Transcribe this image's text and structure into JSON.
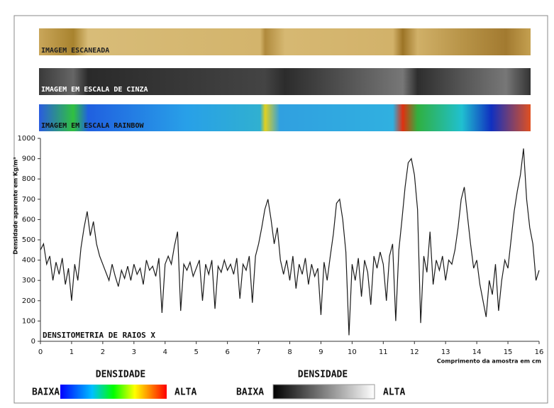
{
  "chart_data": {
    "type": "line",
    "strip_labels": [
      "IMAGEM ESCANEADA",
      "IMAGEM EM ESCALA DE CINZA",
      "IMAGEM EM ESCALA RAINBOW"
    ],
    "annotation": "DENSITOMETRIA DE RAIOS X",
    "ylabel": "Densidade aparente em Kg/m³",
    "xlabel": "Comprimento da amostra em cm",
    "legend": {
      "title": "DENSIDADE",
      "low": "BAIXA",
      "high": "ALTA"
    },
    "color": "#1a1a1a",
    "xlim": [
      0,
      16
    ],
    "xticks": [
      0,
      1,
      2,
      3,
      4,
      5,
      6,
      7,
      8,
      9,
      10,
      11,
      12,
      13,
      14,
      15,
      16
    ],
    "ylim": [
      0,
      1000
    ],
    "yticks": [
      0,
      100,
      200,
      300,
      400,
      500,
      600,
      700,
      800,
      900,
      1000
    ],
    "x": [
      0,
      0.1,
      0.2,
      0.3,
      0.4,
      0.5,
      0.6,
      0.7,
      0.8,
      0.9,
      1,
      1.1,
      1.2,
      1.3,
      1.4,
      1.5,
      1.6,
      1.7,
      1.8,
      1.9,
      2,
      2.1,
      2.2,
      2.3,
      2.4,
      2.5,
      2.6,
      2.7,
      2.8,
      2.9,
      3,
      3.1,
      3.2,
      3.3,
      3.4,
      3.5,
      3.6,
      3.7,
      3.8,
      3.9,
      4,
      4.1,
      4.2,
      4.3,
      4.4,
      4.5,
      4.6,
      4.7,
      4.8,
      4.9,
      5,
      5.1,
      5.2,
      5.3,
      5.4,
      5.5,
      5.6,
      5.7,
      5.8,
      5.9,
      6,
      6.1,
      6.2,
      6.3,
      6.4,
      6.5,
      6.6,
      6.7,
      6.8,
      6.9,
      7,
      7.1,
      7.2,
      7.3,
      7.4,
      7.5,
      7.6,
      7.7,
      7.8,
      7.9,
      8,
      8.1,
      8.2,
      8.3,
      8.4,
      8.5,
      8.6,
      8.7,
      8.8,
      8.9,
      9,
      9.1,
      9.2,
      9.3,
      9.4,
      9.5,
      9.6,
      9.7,
      9.8,
      9.9,
      10,
      10.1,
      10.2,
      10.3,
      10.4,
      10.5,
      10.6,
      10.7,
      10.8,
      10.9,
      11,
      11.1,
      11.2,
      11.3,
      11.4,
      11.5,
      11.6,
      11.7,
      11.8,
      11.9,
      12,
      12.1,
      12.2,
      12.3,
      12.4,
      12.5,
      12.6,
      12.7,
      12.8,
      12.9,
      13,
      13.1,
      13.2,
      13.3,
      13.4,
      13.5,
      13.6,
      13.7,
      13.8,
      13.9,
      14,
      14.1,
      14.2,
      14.3,
      14.4,
      14.5,
      14.6,
      14.7,
      14.8,
      14.9,
      15,
      15.1,
      15.2,
      15.3,
      15.4,
      15.5,
      15.6,
      15.7,
      15.8,
      15.9,
      16
    ],
    "values": [
      450,
      480,
      380,
      420,
      300,
      390,
      330,
      410,
      280,
      360,
      200,
      380,
      300,
      460,
      560,
      640,
      520,
      590,
      480,
      420,
      380,
      340,
      300,
      380,
      320,
      270,
      350,
      310,
      370,
      300,
      380,
      330,
      360,
      280,
      400,
      350,
      370,
      320,
      410,
      140,
      380,
      420,
      380,
      470,
      540,
      150,
      380,
      350,
      390,
      320,
      360,
      400,
      200,
      380,
      330,
      400,
      160,
      370,
      340,
      400,
      350,
      380,
      330,
      410,
      210,
      380,
      350,
      420,
      190,
      420,
      480,
      560,
      650,
      700,
      600,
      480,
      560,
      400,
      330,
      400,
      300,
      420,
      260,
      380,
      330,
      410,
      280,
      380,
      320,
      360,
      130,
      390,
      300,
      420,
      530,
      680,
      700,
      600,
      440,
      30,
      380,
      300,
      410,
      220,
      400,
      340,
      180,
      420,
      360,
      440,
      380,
      200,
      420,
      480,
      100,
      450,
      600,
      760,
      880,
      900,
      820,
      650,
      90,
      420,
      340,
      540,
      280,
      400,
      350,
      420,
      300,
      400,
      380,
      450,
      560,
      700,
      760,
      620,
      480,
      360,
      400,
      280,
      200,
      120,
      300,
      230,
      380,
      150,
      300,
      400,
      360,
      500,
      640,
      740,
      820,
      950,
      700,
      560,
      480,
      300,
      350
    ]
  }
}
